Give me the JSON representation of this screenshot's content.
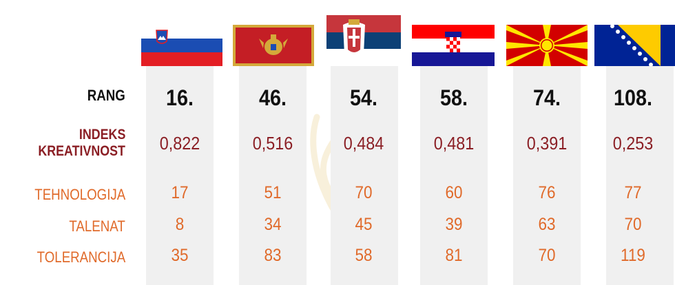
{
  "colors": {
    "rank_text": "#111111",
    "index_text": "#8b1f25",
    "metric_text": "#e06a2a",
    "column_background": "#f0f0f0"
  },
  "row_labels": {
    "rank": "RANG",
    "index_line1": "INDEKS",
    "index_line2": "KREATIVNOST",
    "technology": "TEHNOLOGIJA",
    "talent": "TALENAT",
    "tolerance": "TOLERANCIJA"
  },
  "countries": [
    {
      "flag": "slovenia-flag",
      "rank": "16.",
      "index": "0,822",
      "technology": "17",
      "talent": "8",
      "tolerance": "35"
    },
    {
      "flag": "montenegro-flag",
      "rank": "46.",
      "index": "0,516",
      "technology": "51",
      "talent": "34",
      "tolerance": "83"
    },
    {
      "flag": "serbia-flag",
      "rank": "54.",
      "index": "0,484",
      "technology": "70",
      "talent": "45",
      "tolerance": "58"
    },
    {
      "flag": "croatia-flag",
      "rank": "58.",
      "index": "0,481",
      "technology": "60",
      "talent": "39",
      "tolerance": "81"
    },
    {
      "flag": "north-macedonia-flag",
      "rank": "74.",
      "index": "0,391",
      "technology": "76",
      "talent": "63",
      "tolerance": "70"
    },
    {
      "flag": "bosnia-herzegovina-flag",
      "rank": "108.",
      "index": "0,253",
      "technology": "77",
      "talent": "70",
      "tolerance": "119"
    }
  ],
  "chart_data": {
    "type": "table",
    "columns": [
      "rank",
      "index",
      "technology",
      "talent",
      "tolerance"
    ],
    "rows": [
      {
        "rank": 16,
        "index": 0.822,
        "technology": 17,
        "talent": 8,
        "tolerance": 35
      },
      {
        "rank": 46,
        "index": 0.516,
        "technology": 51,
        "talent": 34,
        "tolerance": 83
      },
      {
        "rank": 54,
        "index": 0.484,
        "technology": 70,
        "talent": 45,
        "tolerance": 58
      },
      {
        "rank": 58,
        "index": 0.481,
        "technology": 60,
        "talent": 39,
        "tolerance": 81
      },
      {
        "rank": 74,
        "index": 0.391,
        "technology": 76,
        "talent": 63,
        "tolerance": 70
      },
      {
        "rank": 108,
        "index": 0.253,
        "technology": 77,
        "talent": 70,
        "tolerance": 119
      }
    ]
  }
}
